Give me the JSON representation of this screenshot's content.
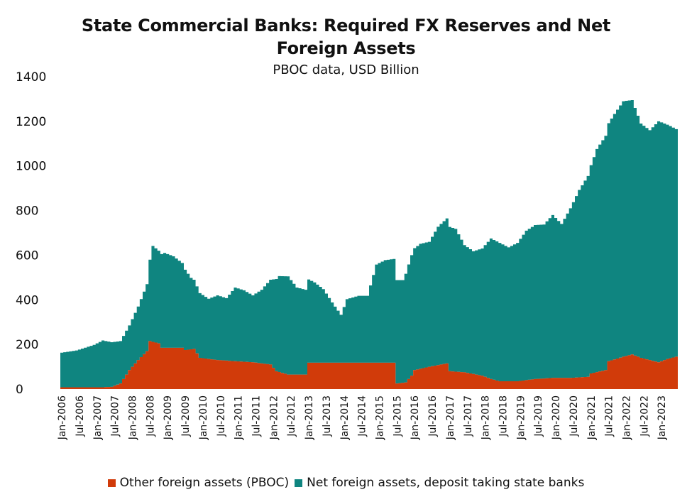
{
  "chart_data": {
    "type": "area",
    "stacked": true,
    "title_lines": [
      "State Commercial Banks: Required FX Reserves and Net",
      "Foreign Assets"
    ],
    "subtitle": "PBOC data, USD Billion",
    "xlabel": "",
    "ylabel": "",
    "ylim": [
      0,
      1400
    ],
    "yticks": [
      0,
      200,
      400,
      600,
      800,
      1000,
      1200,
      1400
    ],
    "x_start": "2006-01",
    "x_end": "2023-06",
    "xtick_labels": [
      "Jan-2006",
      "Jul-2006",
      "Jan-2007",
      "Jul-2007",
      "Jan-2008",
      "Jul-2008",
      "Jan-2009",
      "Jul-2009",
      "Jan-2010",
      "Jul-2010",
      "Jan-2011",
      "Jul-2011",
      "Jan-2012",
      "Jul-2012",
      "Jan-2013",
      "Jul-2013",
      "Jan-2014",
      "Jul-2014",
      "Jan-2015",
      "Jul-2015",
      "Jan-2016",
      "Jul-2016",
      "Jan-2017",
      "Jul-2017",
      "Jan-2018",
      "Jul-2018",
      "Jan-2019",
      "Jul-2019",
      "Jan-2020",
      "Jul-2020",
      "Jan-2021",
      "Jul-2021",
      "Jan-2022",
      "Jul-2022",
      "Jan-2023"
    ],
    "grid": false,
    "legend_position": "bottom",
    "series": [
      {
        "name": "Other foreign assets (PBOC)",
        "color": "#d13b0a",
        "points": [
          [
            "2006-01",
            8
          ],
          [
            "2006-06",
            8
          ],
          [
            "2007-03",
            8
          ],
          [
            "2007-06",
            10
          ],
          [
            "2007-09",
            25
          ],
          [
            "2007-12",
            85
          ],
          [
            "2008-03",
            130
          ],
          [
            "2008-06",
            170
          ],
          [
            "2008-07",
            215
          ],
          [
            "2008-10",
            205
          ],
          [
            "2008-11",
            185
          ],
          [
            "2009-06",
            185
          ],
          [
            "2009-07",
            175
          ],
          [
            "2009-10",
            180
          ],
          [
            "2009-12",
            140
          ],
          [
            "2010-06",
            130
          ],
          [
            "2010-12",
            125
          ],
          [
            "2011-06",
            120
          ],
          [
            "2011-12",
            110
          ],
          [
            "2012-02",
            80
          ],
          [
            "2012-06",
            65
          ],
          [
            "2012-12",
            65
          ],
          [
            "2013-01",
            118
          ],
          [
            "2015-06",
            118
          ],
          [
            "2015-07",
            25
          ],
          [
            "2015-10",
            30
          ],
          [
            "2015-12",
            60
          ],
          [
            "2016-01",
            85
          ],
          [
            "2016-06",
            100
          ],
          [
            "2016-12",
            115
          ],
          [
            "2017-01",
            80
          ],
          [
            "2017-06",
            75
          ],
          [
            "2017-12",
            60
          ],
          [
            "2018-03",
            45
          ],
          [
            "2018-06",
            35
          ],
          [
            "2018-12",
            35
          ],
          [
            "2019-06",
            45
          ],
          [
            "2019-12",
            50
          ],
          [
            "2020-06",
            50
          ],
          [
            "2020-12",
            55
          ],
          [
            "2021-01",
            70
          ],
          [
            "2021-06",
            85
          ],
          [
            "2021-07",
            125
          ],
          [
            "2021-12",
            145
          ],
          [
            "2022-03",
            155
          ],
          [
            "2022-06",
            140
          ],
          [
            "2022-12",
            120
          ],
          [
            "2023-03",
            135
          ],
          [
            "2023-06",
            145
          ]
        ]
      },
      {
        "name": "Net foreign assets, deposit taking state banks",
        "color": "#0f8580",
        "points": [
          [
            "2006-01",
            155
          ],
          [
            "2006-06",
            165
          ],
          [
            "2006-12",
            190
          ],
          [
            "2007-03",
            210
          ],
          [
            "2007-06",
            200
          ],
          [
            "2007-09",
            190
          ],
          [
            "2007-12",
            200
          ],
          [
            "2008-03",
            240
          ],
          [
            "2008-06",
            300
          ],
          [
            "2008-08",
            430
          ],
          [
            "2008-10",
            415
          ],
          [
            "2008-12",
            425
          ],
          [
            "2009-03",
            410
          ],
          [
            "2009-06",
            380
          ],
          [
            "2009-09",
            320
          ],
          [
            "2009-12",
            290
          ],
          [
            "2010-03",
            270
          ],
          [
            "2010-06",
            290
          ],
          [
            "2010-09",
            280
          ],
          [
            "2010-12",
            330
          ],
          [
            "2011-03",
            320
          ],
          [
            "2011-06",
            300
          ],
          [
            "2011-09",
            330
          ],
          [
            "2011-12",
            380
          ],
          [
            "2012-03",
            430
          ],
          [
            "2012-06",
            440
          ],
          [
            "2012-09",
            390
          ],
          [
            "2012-12",
            380
          ],
          [
            "2013-03",
            360
          ],
          [
            "2013-06",
            330
          ],
          [
            "2013-09",
            270
          ],
          [
            "2013-12",
            215
          ],
          [
            "2014-02",
            285
          ],
          [
            "2014-06",
            300
          ],
          [
            "2014-09",
            300
          ],
          [
            "2014-12",
            440
          ],
          [
            "2015-03",
            460
          ],
          [
            "2015-06",
            465
          ],
          [
            "2015-09",
            460
          ],
          [
            "2015-12",
            540
          ],
          [
            "2016-03",
            560
          ],
          [
            "2016-06",
            560
          ],
          [
            "2016-09",
            620
          ],
          [
            "2016-12",
            650
          ],
          [
            "2017-03",
            640
          ],
          [
            "2017-06",
            570
          ],
          [
            "2017-09",
            550
          ],
          [
            "2017-12",
            570
          ],
          [
            "2018-03",
            630
          ],
          [
            "2018-06",
            620
          ],
          [
            "2018-09",
            600
          ],
          [
            "2018-12",
            620
          ],
          [
            "2019-03",
            670
          ],
          [
            "2019-06",
            690
          ],
          [
            "2019-09",
            690
          ],
          [
            "2019-12",
            730
          ],
          [
            "2020-03",
            690
          ],
          [
            "2020-06",
            760
          ],
          [
            "2020-09",
            840
          ],
          [
            "2020-12",
            900
          ],
          [
            "2021-03",
            1000
          ],
          [
            "2021-06",
            1050
          ],
          [
            "2021-09",
            1100
          ],
          [
            "2021-12",
            1145
          ],
          [
            "2022-03",
            1140
          ],
          [
            "2022-06",
            1050
          ],
          [
            "2022-09",
            1030
          ],
          [
            "2022-12",
            1080
          ],
          [
            "2023-03",
            1050
          ],
          [
            "2023-06",
            1020
          ]
        ]
      }
    ]
  }
}
